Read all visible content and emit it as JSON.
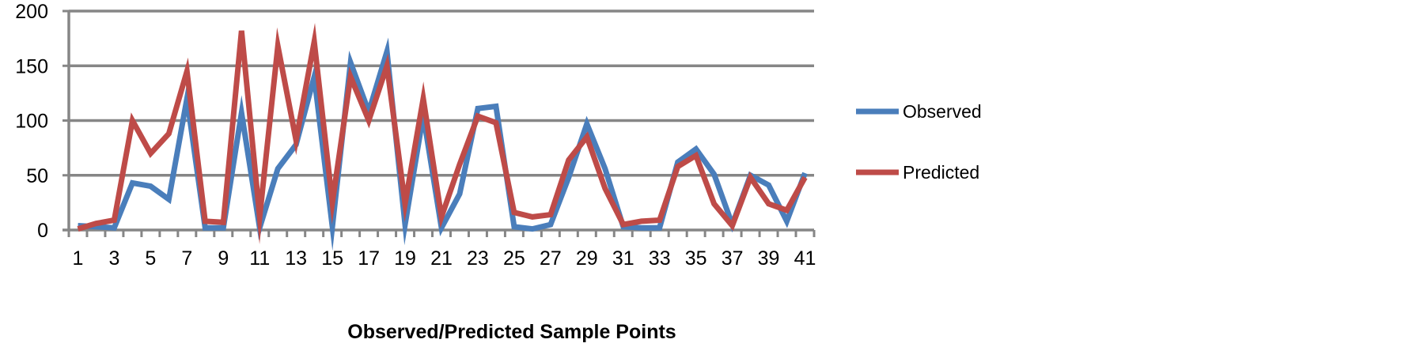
{
  "chart_data": {
    "type": "line",
    "title": "",
    "xlabel": "Observed/Predicted Sample Points",
    "ylabel": "",
    "x": [
      1,
      2,
      3,
      4,
      5,
      6,
      7,
      8,
      9,
      10,
      11,
      12,
      13,
      14,
      15,
      16,
      17,
      18,
      19,
      20,
      21,
      22,
      23,
      24,
      25,
      26,
      27,
      28,
      29,
      30,
      31,
      32,
      33,
      34,
      35,
      36,
      37,
      38,
      39,
      40,
      41
    ],
    "x_tick_labels": [
      "1",
      "3",
      "5",
      "7",
      "9",
      "11",
      "13",
      "15",
      "17",
      "19",
      "21",
      "23",
      "25",
      "27",
      "29",
      "31",
      "33",
      "35",
      "37",
      "39",
      "41"
    ],
    "ylim": [
      0,
      200
    ],
    "y_ticks": [
      0,
      50,
      100,
      150,
      200
    ],
    "grid": true,
    "legend_position": "right",
    "series": [
      {
        "name": "Observed",
        "color": "#4a7ebb",
        "values": [
          4,
          3,
          2,
          43,
          40,
          28,
          120,
          2,
          2,
          107,
          2,
          56,
          78,
          140,
          3,
          153,
          108,
          163,
          5,
          105,
          2,
          33,
          111,
          113,
          3,
          1,
          5,
          48,
          97,
          56,
          3,
          2,
          2,
          62,
          74,
          51,
          5,
          50,
          41,
          8,
          52
        ]
      },
      {
        "name": "Predicted",
        "color": "#be4b48",
        "values": [
          1,
          6,
          9,
          100,
          70,
          88,
          145,
          8,
          7,
          182,
          12,
          168,
          82,
          172,
          25,
          140,
          100,
          150,
          24,
          120,
          12,
          60,
          104,
          98,
          16,
          12,
          14,
          64,
          85,
          38,
          5,
          8,
          9,
          58,
          68,
          24,
          4,
          48,
          24,
          18,
          48
        ]
      }
    ]
  }
}
